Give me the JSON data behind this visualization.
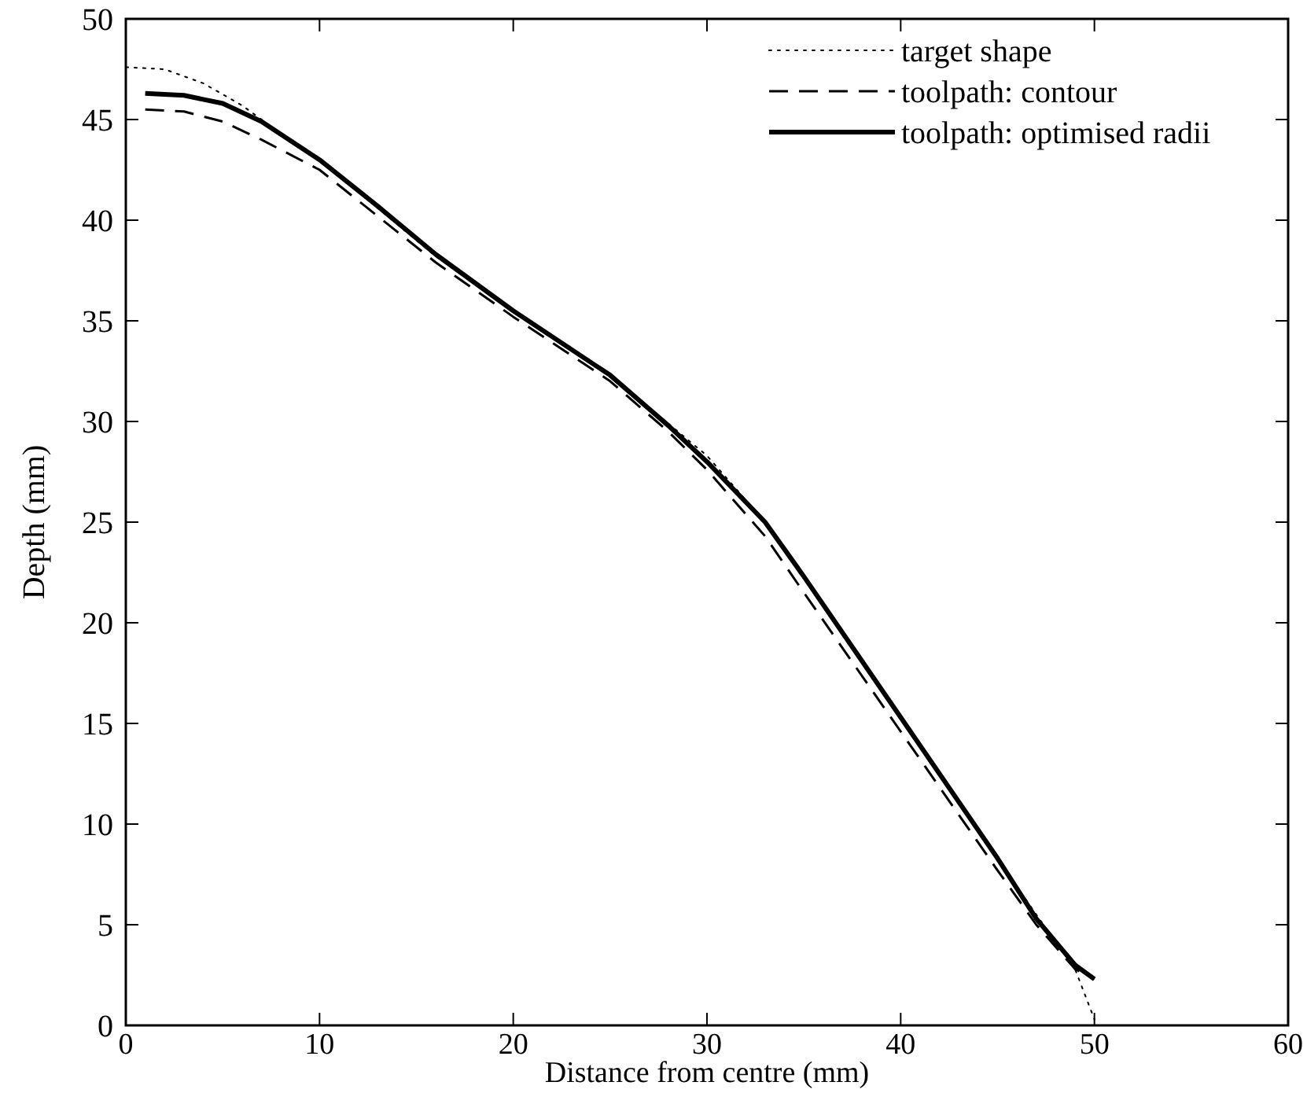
{
  "chart_data": {
    "type": "line",
    "xlabel": "Distance from centre (mm)",
    "ylabel": "Depth (mm)",
    "xlim": [
      0,
      60
    ],
    "xticks": [
      0,
      10,
      20,
      30,
      40,
      50,
      60
    ],
    "ylim": [
      0,
      50
    ],
    "yticks": [
      0,
      5,
      10,
      15,
      20,
      25,
      30,
      35,
      40,
      45,
      50
    ],
    "grid": false,
    "legend": "top right",
    "series": [
      {
        "name": "target shape",
        "color": "#000000",
        "line_style": "dotted",
        "x": [
          0,
          2,
          4,
          6,
          8,
          10,
          13,
          16,
          20,
          25,
          28,
          30,
          33,
          35,
          40,
          45,
          47,
          49,
          50
        ],
        "values": [
          47.6,
          47.5,
          46.8,
          45.7,
          44.3,
          43,
          40.6,
          38.2,
          35.5,
          32.3,
          29.9,
          28.3,
          25,
          22.3,
          15.3,
          8.3,
          5.5,
          2.8,
          0.3
        ]
      },
      {
        "name": "toolpath: contour",
        "color": "#000000",
        "line_style": "dashed",
        "x": [
          1,
          3,
          5,
          7,
          10,
          13,
          16,
          20,
          25,
          28,
          30,
          33,
          35,
          40,
          45,
          47,
          49,
          50
        ],
        "values": [
          45.5,
          45.4,
          44.9,
          44,
          42.5,
          40.2,
          37.9,
          35.2,
          32,
          29.5,
          27.6,
          24.3,
          21.5,
          14.6,
          7.7,
          5,
          2.8,
          2.3
        ]
      },
      {
        "name": "toolpath: optimised radii",
        "color": "#000000",
        "line_style": "solid",
        "x": [
          1,
          3,
          5,
          7,
          10,
          13,
          16,
          20,
          25,
          28,
          30,
          33,
          35,
          40,
          45,
          47,
          49,
          50
        ],
        "values": [
          46.3,
          46.2,
          45.8,
          44.9,
          43,
          40.7,
          38.3,
          35.5,
          32.3,
          29.8,
          28,
          25,
          22.3,
          15.3,
          8.3,
          5.3,
          3,
          2.3
        ]
      }
    ]
  }
}
